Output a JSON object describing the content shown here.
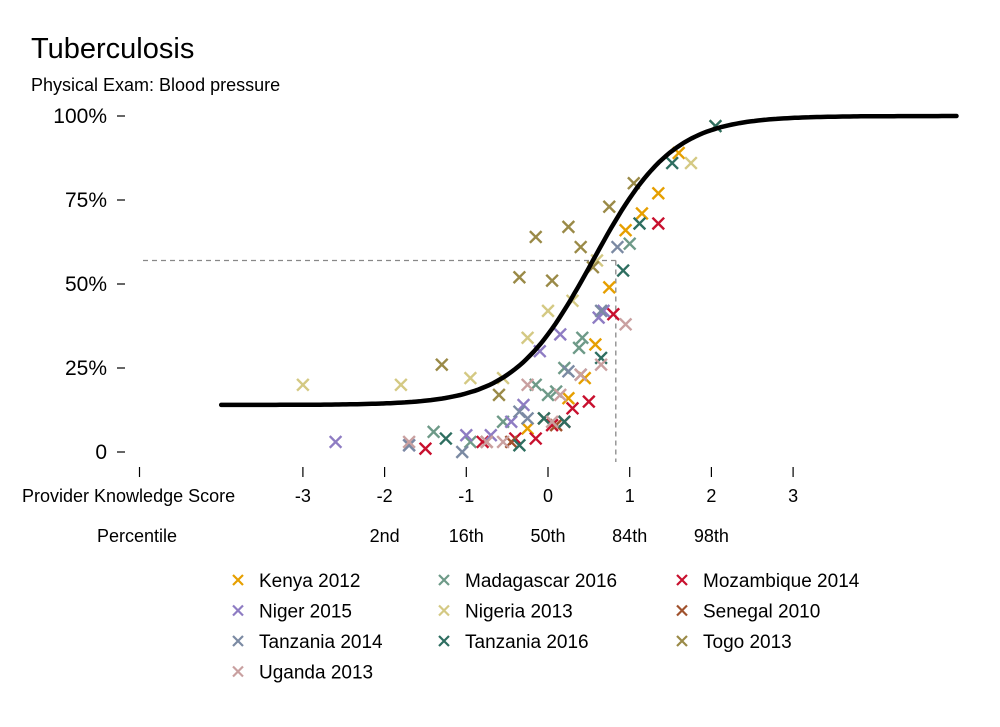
{
  "chart_data": {
    "type": "scatter",
    "title": "Tuberculosis",
    "subtitle": "Physical Exam: Blood pressure",
    "xlabel": "Provider Knowledge Score",
    "percentile_label": "Percentile",
    "xlim": [
      -4,
      5
    ],
    "ylim": [
      0,
      1
    ],
    "x_ticks": [
      {
        "value": -3,
        "label": "-3"
      },
      {
        "value": -2,
        "label": "-2"
      },
      {
        "value": -1,
        "label": "-1"
      },
      {
        "value": 0,
        "label": "0"
      },
      {
        "value": 1,
        "label": "1"
      },
      {
        "value": 2,
        "label": "2"
      },
      {
        "value": 3,
        "label": "3"
      }
    ],
    "percentile_ticks": [
      {
        "value": -2,
        "label": "2nd"
      },
      {
        "value": -1,
        "label": "16th"
      },
      {
        "value": 0,
        "label": "50th"
      },
      {
        "value": 1,
        "label": "84th"
      },
      {
        "value": 2,
        "label": "98th"
      }
    ],
    "y_ticks": [
      {
        "value": 0,
        "label": "0"
      },
      {
        "value": 0.25,
        "label": "25%"
      },
      {
        "value": 0.5,
        "label": "50%"
      },
      {
        "value": 0.75,
        "label": "75%"
      },
      {
        "value": 1,
        "label": "100%"
      }
    ],
    "grid": false,
    "legend_position": "bottom",
    "curve": {
      "lower": 0.14,
      "upper": 1.0,
      "midpoint": 0.55,
      "slope": 2.05,
      "x_from": -4,
      "x_to": 5,
      "color": "#000000"
    },
    "reference": {
      "x": 0.83,
      "y": 0.57
    },
    "series": [
      {
        "name": "Kenya 2012",
        "color": "#E69F00",
        "points": [
          [
            1.6,
            0.89
          ],
          [
            1.35,
            0.77
          ],
          [
            1.15,
            0.71
          ],
          [
            0.95,
            0.66
          ],
          [
            0.75,
            0.49
          ],
          [
            0.58,
            0.32
          ],
          [
            0.45,
            0.22
          ],
          [
            0.25,
            0.16
          ],
          [
            -0.25,
            0.07
          ]
        ]
      },
      {
        "name": "Madagascar 2016",
        "color": "#6E9A88",
        "points": [
          [
            1.0,
            0.62
          ],
          [
            0.42,
            0.34
          ],
          [
            0.38,
            0.31
          ],
          [
            0.2,
            0.25
          ],
          [
            0.1,
            0.18
          ],
          [
            0.0,
            0.17
          ],
          [
            -0.15,
            0.2
          ],
          [
            -0.55,
            0.09
          ],
          [
            -0.95,
            0.03
          ],
          [
            -1.4,
            0.06
          ]
        ]
      },
      {
        "name": "Mozambique 2014",
        "color": "#C8102E",
        "points": [
          [
            1.35,
            0.68
          ],
          [
            0.8,
            0.41
          ],
          [
            0.5,
            0.15
          ],
          [
            0.3,
            0.13
          ],
          [
            0.2,
            0.09
          ],
          [
            0.05,
            0.08
          ],
          [
            -0.15,
            0.04
          ],
          [
            -0.4,
            0.04
          ],
          [
            -0.8,
            0.03
          ],
          [
            -1.5,
            0.01
          ]
        ]
      },
      {
        "name": "Niger 2015",
        "color": "#8E7CC3",
        "points": [
          [
            -2.6,
            0.03
          ],
          [
            -1.7,
            0.02
          ],
          [
            -1.0,
            0.05
          ],
          [
            -0.7,
            0.05
          ],
          [
            -0.45,
            0.09
          ],
          [
            -0.3,
            0.14
          ],
          [
            -0.1,
            0.3
          ],
          [
            0.15,
            0.35
          ],
          [
            0.62,
            0.4
          ],
          [
            0.68,
            0.42
          ]
        ]
      },
      {
        "name": "Nigeria 2013",
        "color": "#D4C983",
        "points": [
          [
            -3.0,
            0.2
          ],
          [
            -1.8,
            0.2
          ],
          [
            -0.95,
            0.22
          ],
          [
            -0.55,
            0.22
          ],
          [
            -0.25,
            0.34
          ],
          [
            0.0,
            0.42
          ],
          [
            0.3,
            0.45
          ],
          [
            0.6,
            0.57
          ],
          [
            1.75,
            0.86
          ],
          [
            2.05,
            0.97
          ]
        ]
      },
      {
        "name": "Senegal 2010",
        "color": "#A0522D",
        "points": [
          [
            -0.75,
            0.03
          ],
          [
            -0.45,
            0.03
          ],
          [
            -0.05,
            0.1
          ],
          [
            0.1,
            0.08
          ]
        ]
      },
      {
        "name": "Tanzania 2014",
        "color": "#7B8AA3",
        "points": [
          [
            0.85,
            0.61
          ],
          [
            0.65,
            0.42
          ],
          [
            0.4,
            0.23
          ],
          [
            0.25,
            0.24
          ],
          [
            -0.25,
            0.1
          ],
          [
            -0.35,
            0.12
          ],
          [
            -1.05,
            0.0
          ],
          [
            -1.7,
            0.02
          ]
        ]
      },
      {
        "name": "Tanzania 2016",
        "color": "#2E6E60",
        "points": [
          [
            2.05,
            0.97
          ],
          [
            1.52,
            0.86
          ],
          [
            1.12,
            0.68
          ],
          [
            0.92,
            0.54
          ],
          [
            0.65,
            0.28
          ],
          [
            0.2,
            0.09
          ],
          [
            -0.05,
            0.1
          ],
          [
            -0.35,
            0.02
          ],
          [
            -1.25,
            0.04
          ]
        ]
      },
      {
        "name": "Togo 2013",
        "color": "#9A8A47",
        "points": [
          [
            1.05,
            0.8
          ],
          [
            0.75,
            0.73
          ],
          [
            0.25,
            0.67
          ],
          [
            0.4,
            0.61
          ],
          [
            0.55,
            0.55
          ],
          [
            -0.15,
            0.64
          ],
          [
            0.05,
            0.51
          ],
          [
            -0.35,
            0.52
          ],
          [
            -1.3,
            0.26
          ],
          [
            -0.6,
            0.17
          ]
        ]
      },
      {
        "name": "Uganda 2013",
        "color": "#C9A0A0",
        "points": [
          [
            0.95,
            0.38
          ],
          [
            0.65,
            0.26
          ],
          [
            0.4,
            0.23
          ],
          [
            0.15,
            0.17
          ],
          [
            0.05,
            0.09
          ],
          [
            -0.25,
            0.2
          ],
          [
            -0.55,
            0.03
          ],
          [
            -0.75,
            0.03
          ],
          [
            -1.7,
            0.03
          ]
        ]
      }
    ]
  }
}
